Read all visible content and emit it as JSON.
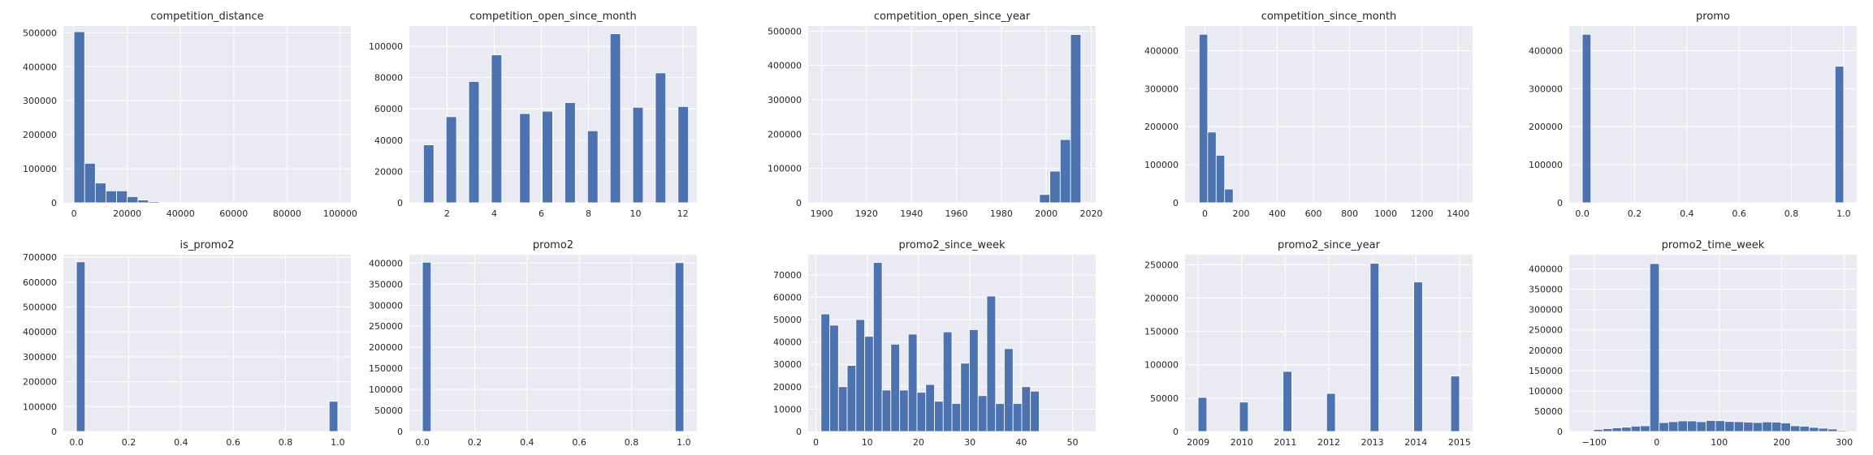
{
  "style": {
    "panel_bg": "#eaeaf2",
    "grid_color": "#ffffff",
    "bar_color": "#4c72b0",
    "bar_edge": "#ffffff"
  },
  "chart_data": [
    {
      "type": "bar",
      "title": "competition_distance",
      "xlim": [
        -4000,
        104000
      ],
      "ylim": [
        0,
        520000
      ],
      "xticks": [
        0,
        20000,
        40000,
        60000,
        80000,
        100000
      ],
      "xtick_labels": [
        "0",
        "20000",
        "40000",
        "60000",
        "80000",
        "100000"
      ],
      "yticks": [
        0,
        100000,
        200000,
        300000,
        400000,
        500000
      ],
      "bars": [
        {
          "x0": 0,
          "x1": 4000,
          "value": 503000
        },
        {
          "x0": 4000,
          "x1": 8000,
          "value": 116000
        },
        {
          "x0": 8000,
          "x1": 12000,
          "value": 58000
        },
        {
          "x0": 12000,
          "x1": 16000,
          "value": 35000
        },
        {
          "x0": 16000,
          "x1": 20000,
          "value": 35000
        },
        {
          "x0": 20000,
          "x1": 24000,
          "value": 18000
        },
        {
          "x0": 24000,
          "x1": 28000,
          "value": 8000
        },
        {
          "x0": 28000,
          "x1": 32000,
          "value": 3500
        },
        {
          "x0": 32000,
          "x1": 36000,
          "value": 1500
        },
        {
          "x0": 36000,
          "x1": 40000,
          "value": 800
        },
        {
          "x0": 40000,
          "x1": 44000,
          "value": 400
        },
        {
          "x0": 44000,
          "x1": 48000,
          "value": 300
        }
      ]
    },
    {
      "type": "bar",
      "title": "competition_open_since_month",
      "xlim": [
        0.4,
        12.6
      ],
      "ylim": [
        0,
        113000
      ],
      "xticks": [
        2,
        4,
        6,
        8,
        10,
        12
      ],
      "xtick_labels": [
        "2",
        "4",
        "6",
        "8",
        "10",
        "12"
      ],
      "yticks": [
        0,
        20000,
        40000,
        60000,
        80000,
        100000
      ],
      "bars": [
        {
          "x0": 1.0,
          "x1": 1.44,
          "value": 37000
        },
        {
          "x0": 1.96,
          "x1": 2.4,
          "value": 55000
        },
        {
          "x0": 2.92,
          "x1": 3.36,
          "value": 77500
        },
        {
          "x0": 3.88,
          "x1": 4.32,
          "value": 94500
        },
        {
          "x0": 5.08,
          "x1": 5.52,
          "value": 57000
        },
        {
          "x0": 6.04,
          "x1": 6.48,
          "value": 58500
        },
        {
          "x0": 7.0,
          "x1": 7.44,
          "value": 64000
        },
        {
          "x0": 7.96,
          "x1": 8.4,
          "value": 46000
        },
        {
          "x0": 8.92,
          "x1": 9.36,
          "value": 108000
        },
        {
          "x0": 9.88,
          "x1": 10.32,
          "value": 61000
        },
        {
          "x0": 10.84,
          "x1": 11.28,
          "value": 83000
        },
        {
          "x0": 11.8,
          "x1": 12.24,
          "value": 61500
        }
      ]
    },
    {
      "type": "bar",
      "title": "competition_open_since_year",
      "xlim": [
        1894,
        2022
      ],
      "ylim": [
        0,
        515000
      ],
      "xticks": [
        1900,
        1920,
        1940,
        1960,
        1980,
        2000,
        2020
      ],
      "xtick_labels": [
        "1900",
        "1920",
        "1940",
        "1960",
        "1980",
        "2000",
        "2020"
      ],
      "yticks": [
        0,
        100000,
        200000,
        300000,
        400000,
        500000
      ],
      "bars": [
        {
          "x0": 1900,
          "x1": 1904.6,
          "value": 300
        },
        {
          "x0": 1959.8,
          "x1": 1964.4,
          "value": 300
        },
        {
          "x0": 1964.4,
          "x1": 1969.0,
          "value": 300
        },
        {
          "x0": 1983.2,
          "x1": 1987.8,
          "value": 500
        },
        {
          "x0": 1987.8,
          "x1": 1992.4,
          "value": 1200
        },
        {
          "x0": 1992.4,
          "x1": 1997.0,
          "value": 2000
        },
        {
          "x0": 1997.0,
          "x1": 2001.6,
          "value": 24000
        },
        {
          "x0": 2001.6,
          "x1": 2006.2,
          "value": 92000
        },
        {
          "x0": 2006.2,
          "x1": 2010.8,
          "value": 184000
        },
        {
          "x0": 2010.8,
          "x1": 2015.4,
          "value": 490000
        }
      ]
    },
    {
      "type": "bar",
      "title": "competition_since_month",
      "xlim": [
        -110,
        1480
      ],
      "ylim": [
        0,
        465000
      ],
      "xticks": [
        0,
        200,
        400,
        600,
        800,
        1000,
        1200,
        1400
      ],
      "xtick_labels": [
        "0",
        "200",
        "400",
        "600",
        "800",
        "1000",
        "1200",
        "1400"
      ],
      "yticks": [
        0,
        100000,
        200000,
        300000,
        400000
      ],
      "bars": [
        {
          "x0": -32,
          "x1": 15,
          "value": 443000
        },
        {
          "x0": 15,
          "x1": 62,
          "value": 186000
        },
        {
          "x0": 62,
          "x1": 109,
          "value": 125000
        },
        {
          "x0": 109,
          "x1": 156,
          "value": 36000
        },
        {
          "x0": 156,
          "x1": 203,
          "value": 2000
        },
        {
          "x0": 203,
          "x1": 250,
          "value": 600
        },
        {
          "x0": 250,
          "x1": 297,
          "value": 300
        }
      ]
    },
    {
      "type": "bar",
      "title": "promo",
      "xlim": [
        -0.05,
        1.05
      ],
      "ylim": [
        0,
        465000
      ],
      "xticks": [
        0.0,
        0.2,
        0.4,
        0.6,
        0.8,
        1.0
      ],
      "xtick_labels": [
        "0.0",
        "0.2",
        "0.4",
        "0.6",
        "0.8",
        "1.0"
      ],
      "yticks": [
        0,
        100000,
        200000,
        300000,
        400000
      ],
      "bars": [
        {
          "x0": 0.0,
          "x1": 0.033,
          "value": 443000
        },
        {
          "x0": 0.967,
          "x1": 1.0,
          "value": 359000
        }
      ]
    },
    {
      "type": "bar",
      "title": "is_promo2",
      "xlim": [
        -0.05,
        1.05
      ],
      "ylim": [
        0,
        710000
      ],
      "xticks": [
        0.0,
        0.2,
        0.4,
        0.6,
        0.8,
        1.0
      ],
      "xtick_labels": [
        "0.0",
        "0.2",
        "0.4",
        "0.6",
        "0.8",
        "1.0"
      ],
      "yticks": [
        0,
        100000,
        200000,
        300000,
        400000,
        500000,
        600000,
        700000
      ],
      "bars": [
        {
          "x0": 0.0,
          "x1": 0.033,
          "value": 681000
        },
        {
          "x0": 0.967,
          "x1": 1.0,
          "value": 121000
        }
      ]
    },
    {
      "type": "bar",
      "title": "promo2",
      "xlim": [
        -0.05,
        1.05
      ],
      "ylim": [
        0,
        420000
      ],
      "xticks": [
        0.0,
        0.2,
        0.4,
        0.6,
        0.8,
        1.0
      ],
      "xtick_labels": [
        "0.0",
        "0.2",
        "0.4",
        "0.6",
        "0.8",
        "1.0"
      ],
      "yticks": [
        0,
        50000,
        100000,
        150000,
        200000,
        250000,
        300000,
        350000,
        400000
      ],
      "bars": [
        {
          "x0": 0.0,
          "x1": 0.033,
          "value": 402000
        },
        {
          "x0": 0.967,
          "x1": 1.0,
          "value": 401000
        }
      ]
    },
    {
      "type": "bar",
      "title": "promo2_since_week",
      "xlim": [
        -1.5,
        54.5
      ],
      "ylim": [
        0,
        79000
      ],
      "xticks": [
        0,
        10,
        20,
        30,
        40,
        50
      ],
      "xtick_labels": [
        "0",
        "10",
        "20",
        "30",
        "40",
        "50"
      ],
      "yticks": [
        0,
        10000,
        20000,
        30000,
        40000,
        50000,
        60000,
        70000
      ],
      "bars": [
        {
          "x0": 1.0,
          "x1": 2.7,
          "value": 52500
        },
        {
          "x0": 2.7,
          "x1": 4.4,
          "value": 47500
        },
        {
          "x0": 4.4,
          "x1": 6.1,
          "value": 20000
        },
        {
          "x0": 6.1,
          "x1": 7.8,
          "value": 29500
        },
        {
          "x0": 7.8,
          "x1": 9.5,
          "value": 50000
        },
        {
          "x0": 9.5,
          "x1": 11.2,
          "value": 42500
        },
        {
          "x0": 11.2,
          "x1": 12.9,
          "value": 75500
        },
        {
          "x0": 12.9,
          "x1": 14.6,
          "value": 18500
        },
        {
          "x0": 14.6,
          "x1": 16.3,
          "value": 39000
        },
        {
          "x0": 16.3,
          "x1": 18.0,
          "value": 18500
        },
        {
          "x0": 18.0,
          "x1": 19.7,
          "value": 43500
        },
        {
          "x0": 19.7,
          "x1": 21.4,
          "value": 17500
        },
        {
          "x0": 21.4,
          "x1": 23.1,
          "value": 21000
        },
        {
          "x0": 23.1,
          "x1": 24.8,
          "value": 13500
        },
        {
          "x0": 24.8,
          "x1": 26.5,
          "value": 44500
        },
        {
          "x0": 26.5,
          "x1": 28.2,
          "value": 12500
        },
        {
          "x0": 28.2,
          "x1": 29.9,
          "value": 30500
        },
        {
          "x0": 29.9,
          "x1": 31.6,
          "value": 45500
        },
        {
          "x0": 31.6,
          "x1": 33.3,
          "value": 16000
        },
        {
          "x0": 33.3,
          "x1": 35.0,
          "value": 60500
        },
        {
          "x0": 35.0,
          "x1": 36.7,
          "value": 12500
        },
        {
          "x0": 36.7,
          "x1": 38.4,
          "value": 37000
        },
        {
          "x0": 38.4,
          "x1": 40.1,
          "value": 12500
        },
        {
          "x0": 40.1,
          "x1": 41.8,
          "value": 20000
        },
        {
          "x0": 41.8,
          "x1": 43.5,
          "value": 18000
        }
      ]
    },
    {
      "type": "bar",
      "title": "promo2_since_year",
      "xlim": [
        2008.7,
        2015.3
      ],
      "ylim": [
        0,
        265000
      ],
      "xticks": [
        2009,
        2010,
        2011,
        2012,
        2013,
        2014,
        2015
      ],
      "xtick_labels": [
        "2009",
        "2010",
        "2011",
        "2012",
        "2013",
        "2014",
        "2015"
      ],
      "yticks": [
        0,
        50000,
        100000,
        150000,
        200000,
        250000
      ],
      "bars": [
        {
          "x0": 2009.0,
          "x1": 2009.2,
          "value": 51000
        },
        {
          "x0": 2009.95,
          "x1": 2010.15,
          "value": 44000
        },
        {
          "x0": 2010.95,
          "x1": 2011.15,
          "value": 90000
        },
        {
          "x0": 2011.95,
          "x1": 2012.15,
          "value": 57000
        },
        {
          "x0": 2012.95,
          "x1": 2013.15,
          "value": 252000
        },
        {
          "x0": 2013.95,
          "x1": 2014.15,
          "value": 224000
        },
        {
          "x0": 2014.8,
          "x1": 2015.0,
          "value": 83000
        }
      ]
    },
    {
      "type": "bar",
      "title": "promo2_time_week",
      "xlim": [
        -140,
        320
      ],
      "ylim": [
        0,
        435000
      ],
      "xticks": [
        -100,
        0,
        100,
        200,
        300
      ],
      "xtick_labels": [
        "−100",
        "0",
        "100",
        "200",
        "300"
      ],
      "yticks": [
        0,
        50000,
        100000,
        150000,
        200000,
        250000,
        300000,
        350000,
        400000
      ],
      "bars": [
        {
          "x0": -101,
          "x1": -86,
          "value": 5000
        },
        {
          "x0": -86,
          "x1": -71,
          "value": 7000
        },
        {
          "x0": -71,
          "x1": -56,
          "value": 9000
        },
        {
          "x0": -56,
          "x1": -41,
          "value": 10500
        },
        {
          "x0": -41,
          "x1": -26,
          "value": 13000
        },
        {
          "x0": -26,
          "x1": -11,
          "value": 14000
        },
        {
          "x0": -11,
          "x1": 4,
          "value": 413000
        },
        {
          "x0": 4,
          "x1": 19,
          "value": 22000
        },
        {
          "x0": 19,
          "x1": 34,
          "value": 24000
        },
        {
          "x0": 34,
          "x1": 49,
          "value": 26000
        },
        {
          "x0": 49,
          "x1": 64,
          "value": 26000
        },
        {
          "x0": 64,
          "x1": 79,
          "value": 24000
        },
        {
          "x0": 79,
          "x1": 94,
          "value": 27000
        },
        {
          "x0": 94,
          "x1": 109,
          "value": 26500
        },
        {
          "x0": 109,
          "x1": 124,
          "value": 24500
        },
        {
          "x0": 124,
          "x1": 139,
          "value": 24000
        },
        {
          "x0": 139,
          "x1": 154,
          "value": 23000
        },
        {
          "x0": 154,
          "x1": 169,
          "value": 22000
        },
        {
          "x0": 169,
          "x1": 184,
          "value": 23500
        },
        {
          "x0": 184,
          "x1": 199,
          "value": 23000
        },
        {
          "x0": 199,
          "x1": 214,
          "value": 21000
        },
        {
          "x0": 214,
          "x1": 229,
          "value": 14000
        },
        {
          "x0": 229,
          "x1": 244,
          "value": 13000
        },
        {
          "x0": 244,
          "x1": 259,
          "value": 10000
        },
        {
          "x0": 259,
          "x1": 274,
          "value": 8000
        },
        {
          "x0": 274,
          "x1": 289,
          "value": 6000
        },
        {
          "x0": 289,
          "x1": 304,
          "value": 2500
        }
      ]
    }
  ]
}
